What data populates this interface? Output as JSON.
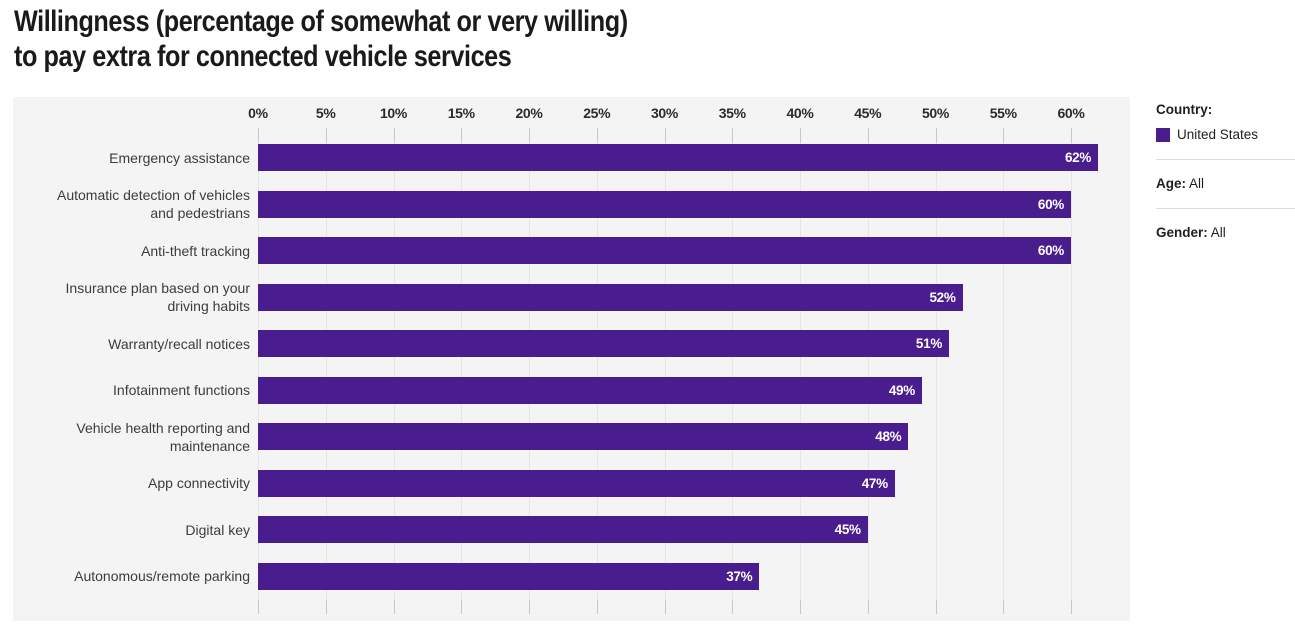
{
  "title": {
    "line1": "Willingness (percentage of somewhat or very willing)",
    "line2": "to pay extra for connected vehicle services"
  },
  "chart_data": {
    "type": "bar",
    "orientation": "horizontal",
    "title": "Willingness (percentage of somewhat or very willing) to pay extra for connected vehicle services",
    "categories": [
      "Emergency assistance",
      "Automatic detection of vehicles and pedestrians",
      "Anti-theft tracking",
      "Insurance plan based on your driving habits",
      "Warranty/recall notices",
      "Infotainment functions",
      "Vehicle health reporting and maintenance",
      "App connectivity",
      "Digital key",
      "Autonomous/remote parking"
    ],
    "values": [
      62,
      60,
      60,
      52,
      51,
      49,
      48,
      47,
      45,
      37
    ],
    "value_labels": [
      "62%",
      "60%",
      "60%",
      "52%",
      "51%",
      "49%",
      "48%",
      "47%",
      "45%",
      "37%"
    ],
    "value_suffix": "%",
    "x_axis_ticks": [
      "0%",
      "5%",
      "10%",
      "15%",
      "20%",
      "25%",
      "30%",
      "35%",
      "40%",
      "45%",
      "50%",
      "55%",
      "60%"
    ],
    "tick_step": 5,
    "xlim": [
      0,
      64
    ],
    "xlabel": "",
    "ylabel": "",
    "grid": true,
    "legend_position": "right",
    "series": [
      {
        "name": "United States",
        "color": "#4a1d8f"
      }
    ],
    "bar_color": "#4a1d8f",
    "plot_background": "#f5f4f5",
    "value_label_color": "#ffffff"
  },
  "legend": {
    "country": {
      "label": "Country:",
      "value": "United States",
      "swatch_color": "#4a1d8f"
    },
    "age": {
      "label": "Age:",
      "value": "All"
    },
    "gender": {
      "label": "Gender:",
      "value": "All"
    }
  }
}
